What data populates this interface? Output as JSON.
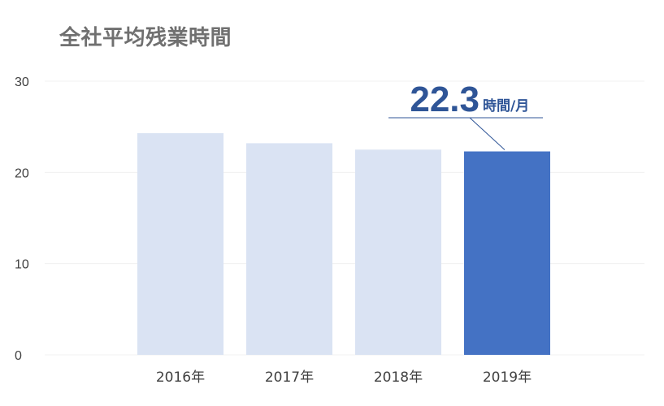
{
  "chart_data": {
    "type": "bar",
    "title": "全社平均残業時間",
    "categories": [
      "2016年",
      "2017年",
      "2018年",
      "2019年"
    ],
    "values": [
      24.3,
      23.2,
      22.5,
      22.3
    ],
    "ylim": [
      0,
      30
    ],
    "yticks": [
      0,
      10,
      20,
      30
    ],
    "grid": true,
    "xlabel": "",
    "ylabel": "",
    "highlight_index": 3,
    "callout": {
      "value": "22.3",
      "unit": "時間/月"
    },
    "colors": {
      "bar": "#dae3f3",
      "highlight": "#4472c4",
      "callout": "#2f5597",
      "grid": "#f0f0f0"
    }
  }
}
